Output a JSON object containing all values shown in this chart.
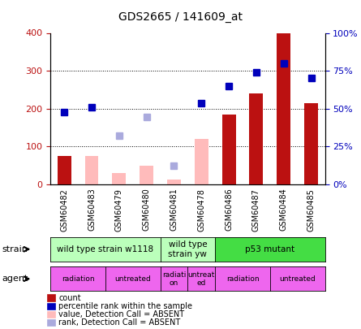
{
  "title": "GDS2665 / 141609_at",
  "samples": [
    "GSM60482",
    "GSM60483",
    "GSM60479",
    "GSM60480",
    "GSM60481",
    "GSM60478",
    "GSM60486",
    "GSM60487",
    "GSM60484",
    "GSM60485"
  ],
  "count_values": [
    75,
    null,
    null,
    null,
    null,
    null,
    185,
    240,
    400,
    215
  ],
  "count_absent_values": [
    null,
    75,
    30,
    50,
    12,
    120,
    null,
    null,
    null,
    null
  ],
  "rank_values": [
    190,
    203,
    null,
    null,
    null,
    215,
    260,
    295,
    320,
    280
  ],
  "rank_absent_values": [
    null,
    null,
    128,
    178,
    50,
    null,
    null,
    null,
    null,
    null
  ],
  "ylim_left": [
    0,
    400
  ],
  "ylim_right": [
    0,
    100
  ],
  "yticks_left": [
    0,
    100,
    200,
    300,
    400
  ],
  "yticks_right": [
    0,
    25,
    50,
    75,
    100
  ],
  "ytick_labels_right": [
    "0%",
    "25%",
    "50%",
    "75%",
    "100%"
  ],
  "grid_lines": [
    100,
    200,
    300
  ],
  "color_count": "#bb1111",
  "color_count_absent": "#ffbbbb",
  "color_rank": "#0000bb",
  "color_rank_absent": "#aaaadd",
  "strain_groups": [
    {
      "label": "wild type strain w1118",
      "start": 0,
      "end": 4,
      "color": "#bbffbb"
    },
    {
      "label": "wild type\nstrain yw",
      "start": 4,
      "end": 6,
      "color": "#bbffbb"
    },
    {
      "label": "p53 mutant",
      "start": 6,
      "end": 10,
      "color": "#44dd44"
    }
  ],
  "agent_groups": [
    {
      "label": "radiation",
      "start": 0,
      "end": 2,
      "color": "#ee66ee"
    },
    {
      "label": "untreated",
      "start": 2,
      "end": 4,
      "color": "#ee66ee"
    },
    {
      "label": "radiati\non",
      "start": 4,
      "end": 5,
      "color": "#ee66ee"
    },
    {
      "label": "untreat\ned",
      "start": 5,
      "end": 6,
      "color": "#ee66ee"
    },
    {
      "label": "radiation",
      "start": 6,
      "end": 8,
      "color": "#ee66ee"
    },
    {
      "label": "untreated",
      "start": 8,
      "end": 10,
      "color": "#ee66ee"
    }
  ],
  "legend_items": [
    {
      "label": "count",
      "color": "#bb1111"
    },
    {
      "label": "percentile rank within the sample",
      "color": "#0000bb"
    },
    {
      "label": "value, Detection Call = ABSENT",
      "color": "#ffbbbb"
    },
    {
      "label": "rank, Detection Call = ABSENT",
      "color": "#aaaadd"
    }
  ],
  "bar_width": 0.5
}
